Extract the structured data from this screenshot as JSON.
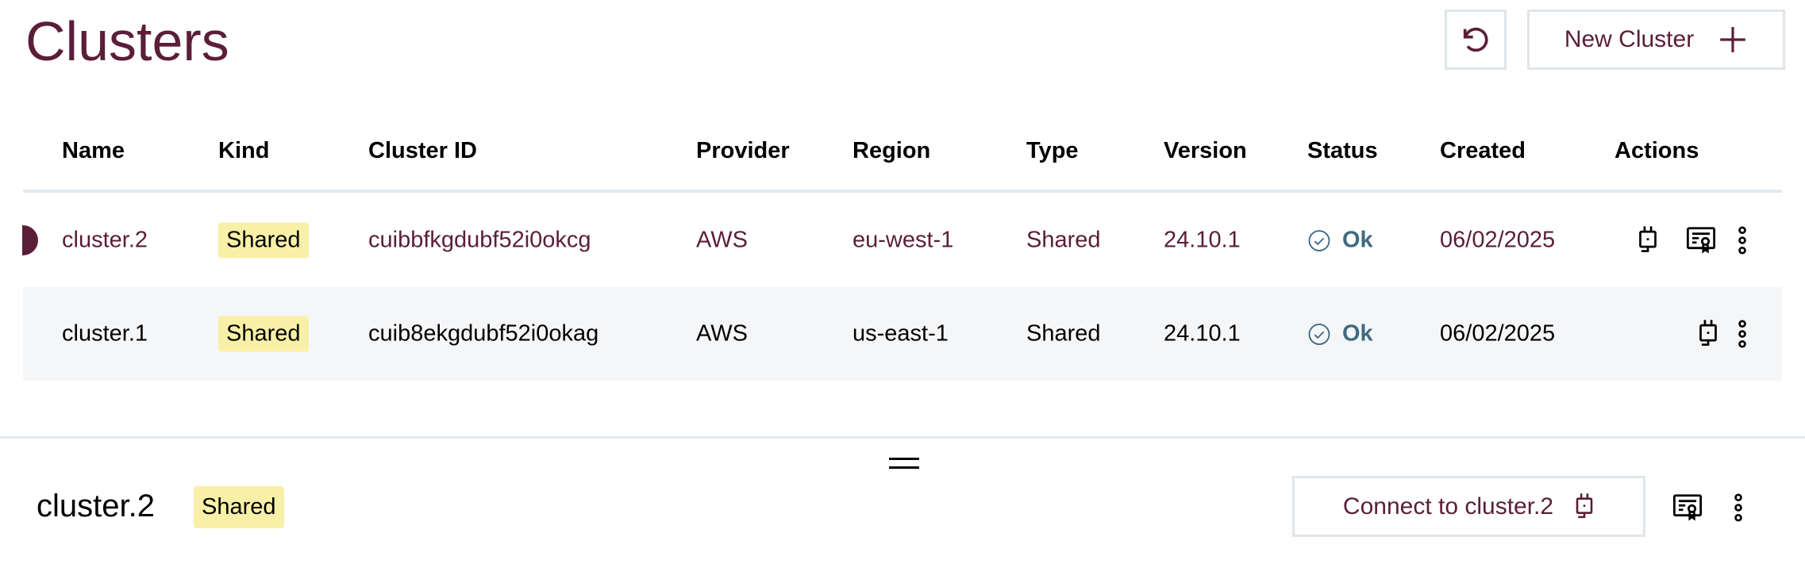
{
  "page": {
    "title": "Clusters",
    "new_cluster_label": "New Cluster"
  },
  "table": {
    "headers": [
      "Name",
      "Kind",
      "Cluster ID",
      "Provider",
      "Region",
      "Type",
      "Version",
      "Status",
      "Created",
      "Actions"
    ],
    "rows": [
      {
        "name": "cluster.2",
        "kind": "Shared",
        "id": "cuibbfkgdubf52i0okcg",
        "provider": "AWS",
        "region": "eu-west-1",
        "type": "Shared",
        "version": "24.10.1",
        "status": "Ok",
        "created": "06/02/2025",
        "selected": true
      },
      {
        "name": "cluster.1",
        "kind": "Shared",
        "id": "cuib8ekgdubf52i0okag",
        "provider": "AWS",
        "region": "us-east-1",
        "type": "Shared",
        "version": "24.10.1",
        "status": "Ok",
        "created": "06/02/2025",
        "selected": false
      }
    ]
  },
  "detail": {
    "name": "cluster.2",
    "kind": "Shared",
    "connect_label": "Connect to cluster.2"
  },
  "colors": {
    "accent": "#5a1e38",
    "status_ok": "#3f6b80",
    "badge": "#f8f0a6"
  }
}
